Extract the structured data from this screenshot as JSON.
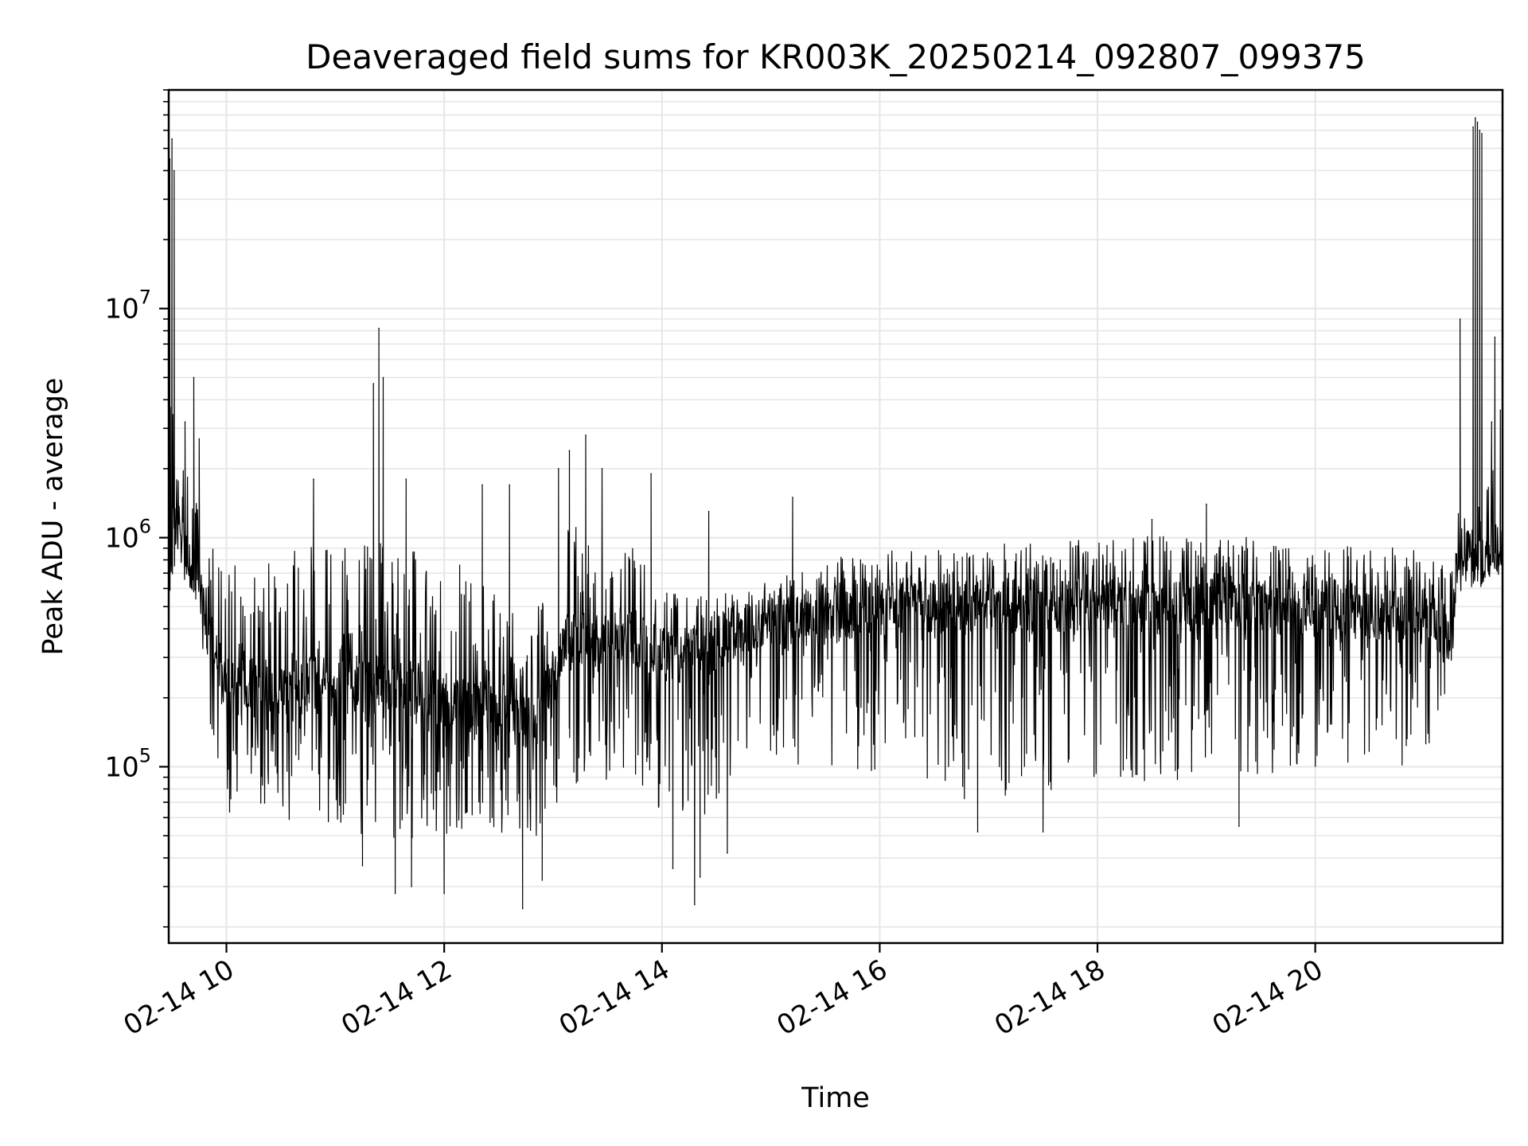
{
  "chart_data": {
    "type": "line",
    "title": "Deaveraged field sums for KR003K_20250214_092807_099375",
    "xlabel": "Time",
    "ylabel": "Peak ADU - average",
    "yscale": "log",
    "xlim_hours": [
      9.47,
      21.72
    ],
    "ylim": [
      17000,
      90000000
    ],
    "grid": true,
    "line_color": "#000000",
    "x_ticks": [
      {
        "hour": 10,
        "label": "02-14 10"
      },
      {
        "hour": 12,
        "label": "02-14 12"
      },
      {
        "hour": 14,
        "label": "02-14 14"
      },
      {
        "hour": 16,
        "label": "02-14 16"
      },
      {
        "hour": 18,
        "label": "02-14 18"
      },
      {
        "hour": 20,
        "label": "02-14 20"
      }
    ],
    "y_ticks": [
      {
        "value": 100000,
        "base": "10",
        "exp": "5"
      },
      {
        "value": 1000000,
        "base": "10",
        "exp": "6"
      },
      {
        "value": 10000000,
        "base": "10",
        "exp": "7"
      }
    ],
    "profile": [
      {
        "h": 9.48,
        "base": 700000,
        "lo": 650000,
        "hi": 5000000
      },
      {
        "h": 9.55,
        "base": 1200000,
        "lo": 700000,
        "hi": 2500000
      },
      {
        "h": 9.72,
        "base": 700000,
        "lo": 550000,
        "hi": 1600000
      },
      {
        "h": 9.85,
        "base": 350000,
        "lo": 150000,
        "hi": 900000
      },
      {
        "h": 10.0,
        "base": 220000,
        "lo": 60000,
        "hi": 1000000
      },
      {
        "h": 11.0,
        "base": 230000,
        "lo": 55000,
        "hi": 900000
      },
      {
        "h": 11.5,
        "base": 230000,
        "lo": 45000,
        "hi": 1000000
      },
      {
        "h": 12.0,
        "base": 200000,
        "lo": 50000,
        "hi": 900000
      },
      {
        "h": 12.5,
        "base": 180000,
        "lo": 50000,
        "hi": 600000
      },
      {
        "h": 12.8,
        "base": 150000,
        "lo": 40000,
        "hi": 400000
      },
      {
        "h": 13.1,
        "base": 350000,
        "lo": 80000,
        "hi": 1200000
      },
      {
        "h": 13.7,
        "base": 380000,
        "lo": 90000,
        "hi": 1000000
      },
      {
        "h": 14.0,
        "base": 300000,
        "lo": 60000,
        "hi": 600000
      },
      {
        "h": 14.4,
        "base": 330000,
        "lo": 60000,
        "hi": 550000
      },
      {
        "h": 14.8,
        "base": 420000,
        "lo": 120000,
        "hi": 600000
      },
      {
        "h": 15.5,
        "base": 450000,
        "lo": 90000,
        "hi": 800000
      },
      {
        "h": 16.0,
        "base": 500000,
        "lo": 80000,
        "hi": 900000
      },
      {
        "h": 17.0,
        "base": 500000,
        "lo": 70000,
        "hi": 950000
      },
      {
        "h": 18.0,
        "base": 500000,
        "lo": 80000,
        "hi": 1000000
      },
      {
        "h": 19.0,
        "base": 500000,
        "lo": 90000,
        "hi": 1050000
      },
      {
        "h": 20.0,
        "base": 500000,
        "lo": 90000,
        "hi": 950000
      },
      {
        "h": 21.0,
        "base": 450000,
        "lo": 100000,
        "hi": 900000
      },
      {
        "h": 21.25,
        "base": 350000,
        "lo": 250000,
        "hi": 700000
      },
      {
        "h": 21.3,
        "base": 750000,
        "lo": 600000,
        "hi": 1300000
      },
      {
        "h": 21.55,
        "base": 800000,
        "lo": 600000,
        "hi": 1500000
      },
      {
        "h": 21.6,
        "base": 900000,
        "lo": 700000,
        "hi": 3000000
      },
      {
        "h": 21.72,
        "base": 900000,
        "lo": 700000,
        "hi": 3000000
      }
    ],
    "spikes": [
      {
        "h": 9.48,
        "v": 45000000
      },
      {
        "h": 9.5,
        "v": 55000000
      },
      {
        "h": 9.52,
        "v": 40000000
      },
      {
        "h": 9.62,
        "v": 3200000
      },
      {
        "h": 9.7,
        "v": 5000000
      },
      {
        "h": 9.75,
        "v": 2700000
      },
      {
        "h": 10.8,
        "v": 1800000
      },
      {
        "h": 11.35,
        "v": 4700000
      },
      {
        "h": 11.4,
        "v": 8200000
      },
      {
        "h": 11.44,
        "v": 5000000
      },
      {
        "h": 11.65,
        "v": 1800000
      },
      {
        "h": 12.35,
        "v": 1700000
      },
      {
        "h": 12.6,
        "v": 1700000
      },
      {
        "h": 13.05,
        "v": 2000000
      },
      {
        "h": 13.15,
        "v": 2400000
      },
      {
        "h": 13.3,
        "v": 2800000
      },
      {
        "h": 13.45,
        "v": 2000000
      },
      {
        "h": 13.9,
        "v": 1900000
      },
      {
        "h": 14.43,
        "v": 1300000
      },
      {
        "h": 15.2,
        "v": 1500000
      },
      {
        "h": 18.5,
        "v": 1200000
      },
      {
        "h": 19.0,
        "v": 1400000
      },
      {
        "h": 21.33,
        "v": 9000000
      },
      {
        "h": 21.45,
        "v": 62000000
      },
      {
        "h": 21.47,
        "v": 68000000
      },
      {
        "h": 21.49,
        "v": 65000000
      },
      {
        "h": 21.51,
        "v": 60000000
      },
      {
        "h": 21.53,
        "v": 58000000
      },
      {
        "h": 21.62,
        "v": 3200000
      },
      {
        "h": 21.65,
        "v": 7500000
      },
      {
        "h": 21.7,
        "v": 3600000
      }
    ],
    "dips": [
      {
        "h": 11.25,
        "v": 37000
      },
      {
        "h": 11.55,
        "v": 28000
      },
      {
        "h": 11.7,
        "v": 30000
      },
      {
        "h": 12.0,
        "v": 28000
      },
      {
        "h": 12.72,
        "v": 24000
      },
      {
        "h": 12.9,
        "v": 32000
      },
      {
        "h": 14.1,
        "v": 36000
      },
      {
        "h": 14.3,
        "v": 25000
      },
      {
        "h": 14.35,
        "v": 33000
      },
      {
        "h": 14.6,
        "v": 42000
      },
      {
        "h": 16.9,
        "v": 52000
      },
      {
        "h": 17.5,
        "v": 52000
      },
      {
        "h": 19.3,
        "v": 55000
      }
    ]
  }
}
